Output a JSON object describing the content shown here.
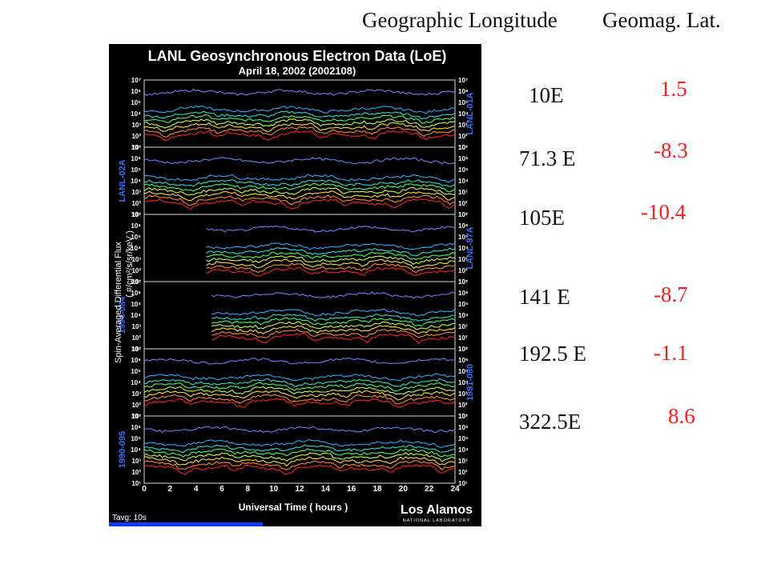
{
  "header": {
    "longitude": "Geographic Longitude",
    "latitude": "Geomag. Lat."
  },
  "rows": [
    {
      "lon": "10E",
      "lat": "1.5"
    },
    {
      "lon": "71.3 E",
      "lat": "-8.3"
    },
    {
      "lon": "105E",
      "lat": "-10.4"
    },
    {
      "lon": "141 E",
      "lat": "-8.7"
    },
    {
      "lon": "192.5 E",
      "lat": "-1.1"
    },
    {
      "lon": "322.5E",
      "lat": "8.6"
    }
  ],
  "chart_data": {
    "type": "line",
    "title": "LANL Geosynchronous Electron Data (LoE)",
    "subtitle": "April 18, 2002 (2002108)",
    "xlabel": "Universal Time ( hours )",
    "ylabel": "Spin-Averaged Differential Flux",
    "ylabel_units": "( #/cm²/s/sr/keV )",
    "xlim": [
      0,
      24
    ],
    "x_ticks": [
      "0",
      "2",
      "4",
      "6",
      "8",
      "10",
      "12",
      "14",
      "16",
      "18",
      "20",
      "22",
      "24"
    ],
    "y_scale": "log",
    "ylim": [
      10,
      10000000
    ],
    "y_ticks": [
      "10¹",
      "10²",
      "10³",
      "10⁴",
      "10⁵",
      "10⁶",
      "10⁷"
    ],
    "averaging": "Tavg: 10s",
    "logo": "Los Alamos",
    "logo_sub": "NATIONAL  LABORATORY",
    "channel_colors": [
      "#ff1f1f",
      "#ff8a1f",
      "#ffe21f",
      "#c8ff3a",
      "#3dff6a",
      "#22e0d0",
      "#2aa8ff",
      "#6d7dff"
    ],
    "panels": [
      {
        "satellite": "LANL-01A",
        "label_side": "right",
        "data_start": 0.0,
        "base": [
          2.2,
          2.55,
          2.9,
          3.25,
          3.6,
          3.95,
          4.4,
          5.9
        ]
      },
      {
        "satellite": "LANL-02A",
        "label_side": "left",
        "data_start": 0.0,
        "base": [
          2.1,
          2.45,
          2.8,
          3.15,
          3.5,
          3.85,
          4.3,
          5.8
        ]
      },
      {
        "satellite": "LANL-97A",
        "label_side": "right",
        "data_start": 4.8,
        "base": [
          2.0,
          2.35,
          2.7,
          3.05,
          3.4,
          3.75,
          4.2,
          5.7
        ]
      },
      {
        "satellite": "1994-084",
        "label_side": "left",
        "data_start": 5.2,
        "base": [
          2.1,
          2.45,
          2.8,
          3.15,
          3.5,
          3.85,
          4.3,
          5.8
        ]
      },
      {
        "satellite": "1991-080",
        "label_side": "right",
        "data_start": 0.0,
        "base": [
          2.3,
          2.65,
          3.0,
          3.35,
          3.7,
          4.05,
          4.5,
          5.9
        ]
      },
      {
        "satellite": "1990-095",
        "label_side": "left",
        "data_start": 0.0,
        "base": [
          2.4,
          2.75,
          3.1,
          3.45,
          3.8,
          4.15,
          4.6,
          5.8
        ]
      }
    ]
  }
}
